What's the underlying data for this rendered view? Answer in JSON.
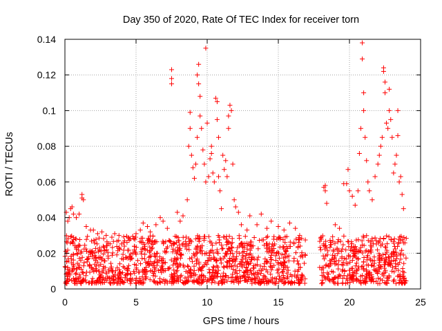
{
  "chart_data": {
    "type": "scatter",
    "title": "Day 350 of 2020, Rate Of TEC Index for receiver torn",
    "xlabel": "GPS time / hours",
    "ylabel": "ROTI / TECUs",
    "xlim": [
      0,
      25
    ],
    "ylim": [
      0,
      0.14
    ],
    "x_ticks": [
      "0",
      "5",
      "10",
      "15",
      "20",
      "25"
    ],
    "y_ticks": [
      "0",
      "0.02",
      "0.04",
      "0.06",
      "0.08",
      "0.1",
      "0.12",
      "0.14"
    ],
    "grid": true,
    "marker": "+",
    "series": [
      {
        "color": "#ff0000",
        "base_band": {
          "x_ranges": [
            [
              0,
              16.9
            ],
            [
              17.9,
              24
            ]
          ],
          "y_range": [
            0.003,
            0.03
          ]
        },
        "points": [
          [
            0.1,
            0.043
          ],
          [
            0.2,
            0.038
          ],
          [
            0.3,
            0.04
          ],
          [
            0.4,
            0.045
          ],
          [
            0.5,
            0.046
          ],
          [
            0.6,
            0.042
          ],
          [
            0.8,
            0.04
          ],
          [
            1.0,
            0.042
          ],
          [
            1.2,
            0.053
          ],
          [
            1.2,
            0.051
          ],
          [
            1.3,
            0.05
          ],
          [
            1.5,
            0.035
          ],
          [
            1.8,
            0.033
          ],
          [
            2.0,
            0.033
          ],
          [
            2.3,
            0.031
          ],
          [
            2.6,
            0.032
          ],
          [
            2.9,
            0.03
          ],
          [
            3.3,
            0.029
          ],
          [
            3.5,
            0.031
          ],
          [
            3.8,
            0.03
          ],
          [
            4.2,
            0.027
          ],
          [
            4.6,
            0.028
          ],
          [
            5.0,
            0.031
          ],
          [
            5.3,
            0.033
          ],
          [
            5.5,
            0.037
          ],
          [
            5.8,
            0.035
          ],
          [
            6.0,
            0.032
          ],
          [
            6.4,
            0.036
          ],
          [
            6.7,
            0.04
          ],
          [
            6.9,
            0.038
          ],
          [
            7.2,
            0.034
          ],
          [
            7.5,
            0.123
          ],
          [
            7.5,
            0.118
          ],
          [
            7.5,
            0.115
          ],
          [
            7.9,
            0.043
          ],
          [
            8.1,
            0.038
          ],
          [
            8.3,
            0.041
          ],
          [
            8.6,
            0.05
          ],
          [
            8.7,
            0.08
          ],
          [
            8.8,
            0.099
          ],
          [
            8.8,
            0.09
          ],
          [
            8.9,
            0.075
          ],
          [
            9.0,
            0.068
          ],
          [
            9.1,
            0.062
          ],
          [
            9.2,
            0.07
          ],
          [
            9.3,
            0.085
          ],
          [
            9.3,
            0.12
          ],
          [
            9.4,
            0.126
          ],
          [
            9.4,
            0.115
          ],
          [
            9.5,
            0.108
          ],
          [
            9.5,
            0.097
          ],
          [
            9.6,
            0.09
          ],
          [
            9.7,
            0.078
          ],
          [
            9.8,
            0.07
          ],
          [
            9.9,
            0.06
          ],
          [
            9.9,
            0.135
          ],
          [
            10.0,
            0.093
          ],
          [
            10.1,
            0.063
          ],
          [
            10.2,
            0.073
          ],
          [
            10.3,
            0.08
          ],
          [
            10.3,
            0.076
          ],
          [
            10.4,
            0.065
          ],
          [
            10.5,
            0.06
          ],
          [
            10.6,
            0.107
          ],
          [
            10.7,
            0.105
          ],
          [
            10.7,
            0.095
          ],
          [
            10.8,
            0.085
          ],
          [
            10.8,
            0.063
          ],
          [
            10.9,
            0.055
          ],
          [
            11.0,
            0.045
          ],
          [
            11.1,
            0.075
          ],
          [
            11.2,
            0.067
          ],
          [
            11.3,
            0.072
          ],
          [
            11.4,
            0.063
          ],
          [
            11.5,
            0.09
          ],
          [
            11.5,
            0.097
          ],
          [
            11.6,
            0.103
          ],
          [
            11.7,
            0.1
          ],
          [
            11.8,
            0.07
          ],
          [
            11.9,
            0.05
          ],
          [
            12.0,
            0.046
          ],
          [
            12.2,
            0.043
          ],
          [
            12.4,
            0.036
          ],
          [
            12.8,
            0.033
          ],
          [
            13.0,
            0.041
          ],
          [
            13.5,
            0.036
          ],
          [
            13.8,
            0.042
          ],
          [
            14.2,
            0.034
          ],
          [
            14.5,
            0.038
          ],
          [
            15.0,
            0.035
          ],
          [
            15.4,
            0.033
          ],
          [
            15.8,
            0.037
          ],
          [
            16.2,
            0.034
          ],
          [
            16.5,
            0.03
          ],
          [
            18.2,
            0.057
          ],
          [
            18.3,
            0.058
          ],
          [
            18.3,
            0.055
          ],
          [
            18.4,
            0.048
          ],
          [
            19.0,
            0.036
          ],
          [
            19.3,
            0.034
          ],
          [
            19.6,
            0.059
          ],
          [
            19.8,
            0.059
          ],
          [
            19.9,
            0.067
          ],
          [
            20.0,
            0.055
          ],
          [
            20.2,
            0.052
          ],
          [
            20.4,
            0.047
          ],
          [
            20.6,
            0.055
          ],
          [
            20.7,
            0.076
          ],
          [
            20.8,
            0.09
          ],
          [
            20.9,
            0.138
          ],
          [
            20.9,
            0.129
          ],
          [
            21.0,
            0.11
          ],
          [
            21.0,
            0.1
          ],
          [
            21.1,
            0.085
          ],
          [
            21.2,
            0.072
          ],
          [
            21.3,
            0.06
          ],
          [
            21.4,
            0.055
          ],
          [
            21.6,
            0.05
          ],
          [
            21.8,
            0.063
          ],
          [
            22.0,
            0.07
          ],
          [
            22.1,
            0.075
          ],
          [
            22.2,
            0.08
          ],
          [
            22.3,
            0.085
          ],
          [
            22.4,
            0.124
          ],
          [
            22.4,
            0.122
          ],
          [
            22.5,
            0.116
          ],
          [
            22.5,
            0.11
          ],
          [
            22.6,
            0.093
          ],
          [
            22.7,
            0.09
          ],
          [
            22.8,
            0.112
          ],
          [
            22.8,
            0.1
          ],
          [
            22.9,
            0.095
          ],
          [
            23.0,
            0.085
          ],
          [
            23.1,
            0.065
          ],
          [
            23.2,
            0.07
          ],
          [
            23.3,
            0.075
          ],
          [
            23.4,
            0.1
          ],
          [
            23.4,
            0.086
          ],
          [
            23.5,
            0.06
          ],
          [
            23.6,
            0.063
          ],
          [
            23.7,
            0.053
          ],
          [
            23.8,
            0.045
          ]
        ]
      }
    ]
  }
}
